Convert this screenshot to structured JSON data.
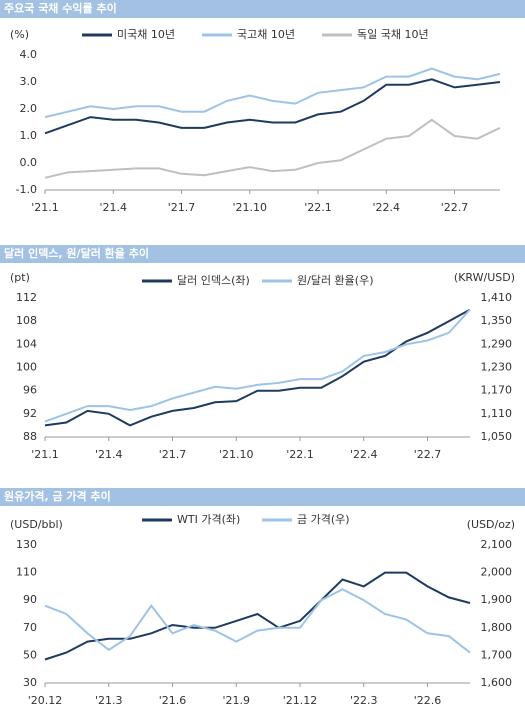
{
  "chart_data": [
    {
      "type": "line",
      "title": "주요국 국채 수익률 추이",
      "y_label": "(%)",
      "categories": [
        "'21.1",
        null,
        null,
        "'21.4",
        null,
        null,
        "'21.7",
        null,
        null,
        "'21.10",
        null,
        null,
        "'22.1",
        null,
        null,
        "'22.4",
        null,
        null,
        "'22.7",
        null,
        null
      ],
      "series": [
        {
          "name": "미국채 10년",
          "color": "#1f3a5f",
          "values": [
            1.1,
            1.4,
            1.7,
            1.6,
            1.6,
            1.5,
            1.3,
            1.3,
            1.5,
            1.6,
            1.5,
            1.5,
            1.8,
            1.9,
            2.3,
            2.9,
            2.9,
            3.1,
            2.8,
            2.9,
            3.0
          ]
        },
        {
          "name": "국고채 10년",
          "color": "#9dc3e6",
          "values": [
            1.7,
            1.9,
            2.1,
            2.0,
            2.1,
            2.1,
            1.9,
            1.9,
            2.3,
            2.5,
            2.3,
            2.2,
            2.6,
            2.7,
            2.8,
            3.2,
            3.2,
            3.5,
            3.2,
            3.1,
            3.3
          ]
        },
        {
          "name": "독일 국채 10년",
          "color": "#bfbfbf",
          "values": [
            -0.55,
            -0.35,
            -0.3,
            -0.25,
            -0.2,
            -0.2,
            -0.4,
            -0.45,
            -0.3,
            -0.15,
            -0.3,
            -0.25,
            0.0,
            0.1,
            0.5,
            0.9,
            1.0,
            1.6,
            1.0,
            0.9,
            1.3
          ]
        }
      ],
      "ylim": [
        -1,
        4
      ],
      "yticks": [
        {
          "value": -1,
          "label": "-1.0"
        },
        {
          "value": 0,
          "label": "0.0"
        },
        {
          "value": 1,
          "label": "1.0"
        },
        {
          "value": 2,
          "label": "2.0"
        },
        {
          "value": 3,
          "label": "3.0"
        },
        {
          "value": 4,
          "label": "4.0"
        }
      ]
    },
    {
      "type": "line",
      "title": "달러 인덱스, 원/달러 환율 추이",
      "y_label": "(pt)",
      "y2_label": "(KRW/USD)",
      "categories": [
        "'21.1",
        null,
        null,
        "'21.4",
        null,
        null,
        "'21.7",
        null,
        null,
        "'21.10",
        null,
        null,
        "'22.1",
        null,
        null,
        "'22.4",
        null,
        null,
        "'22.7",
        null,
        null
      ],
      "series": [
        {
          "name": "달러 인덱스(좌)",
          "color": "#1f3a5f",
          "values": [
            90,
            90.5,
            92.5,
            92,
            90,
            91.5,
            92.5,
            93,
            94,
            94.2,
            96,
            96,
            96.5,
            96.5,
            98.5,
            101,
            102,
            104.5,
            106,
            108,
            110
          ]
        },
        {
          "name": "원/달러 환율(우)",
          "color": "#9dc3e6",
          "axis": "y2",
          "values": [
            1090,
            1110,
            1130,
            1130,
            1120,
            1130,
            1150,
            1165,
            1180,
            1175,
            1185,
            1190,
            1200,
            1200,
            1220,
            1260,
            1270,
            1290,
            1300,
            1320,
            1380
          ]
        }
      ],
      "ylim": [
        88,
        112
      ],
      "yticks": [
        88,
        92,
        96,
        100,
        104,
        108,
        112
      ],
      "y2lim": [
        1050,
        1410
      ],
      "y2ticks": [
        {
          "value": 1050,
          "label": "1,050"
        },
        {
          "value": 1110,
          "label": "1,110"
        },
        {
          "value": 1170,
          "label": "1,170"
        },
        {
          "value": 1230,
          "label": "1,230"
        },
        {
          "value": 1290,
          "label": "1,290"
        },
        {
          "value": 1350,
          "label": "1,350"
        },
        {
          "value": 1410,
          "label": "1,410"
        }
      ]
    },
    {
      "type": "line",
      "title": "원유가격, 금 가격 추이",
      "y_label": "(USD/bbl)",
      "y2_label": "(USD/oz)",
      "categories": [
        "'20.12",
        null,
        null,
        "'21.3",
        null,
        null,
        "'21.6",
        null,
        null,
        "'21.9",
        null,
        null,
        "'21.12",
        null,
        null,
        "'22.3",
        null,
        null,
        "'22.6",
        null,
        null
      ],
      "series": [
        {
          "name": "WTI 가격(좌)",
          "color": "#1f3a5f",
          "values": [
            47,
            52,
            60,
            62,
            62,
            66,
            72,
            70,
            70,
            75,
            80,
            70,
            75,
            90,
            105,
            100,
            110,
            110,
            100,
            92,
            88
          ]
        },
        {
          "name": "금 가격(우)",
          "color": "#9dc3e6",
          "axis": "y2",
          "values": [
            1880,
            1850,
            1780,
            1720,
            1770,
            1880,
            1780,
            1810,
            1790,
            1750,
            1790,
            1800,
            1800,
            1900,
            1940,
            1900,
            1850,
            1830,
            1780,
            1770,
            1710
          ]
        }
      ],
      "ylim": [
        30,
        130
      ],
      "yticks": [
        30,
        50,
        70,
        90,
        110,
        130
      ],
      "y2lim": [
        1600,
        2100
      ],
      "y2ticks": [
        {
          "value": 1600,
          "label": "1,600"
        },
        {
          "value": 1700,
          "label": "1,700"
        },
        {
          "value": 1800,
          "label": "1,800"
        },
        {
          "value": 1900,
          "label": "1,900"
        },
        {
          "value": 2000,
          "label": "2,000"
        },
        {
          "value": 2100,
          "label": "2,100"
        }
      ]
    }
  ]
}
